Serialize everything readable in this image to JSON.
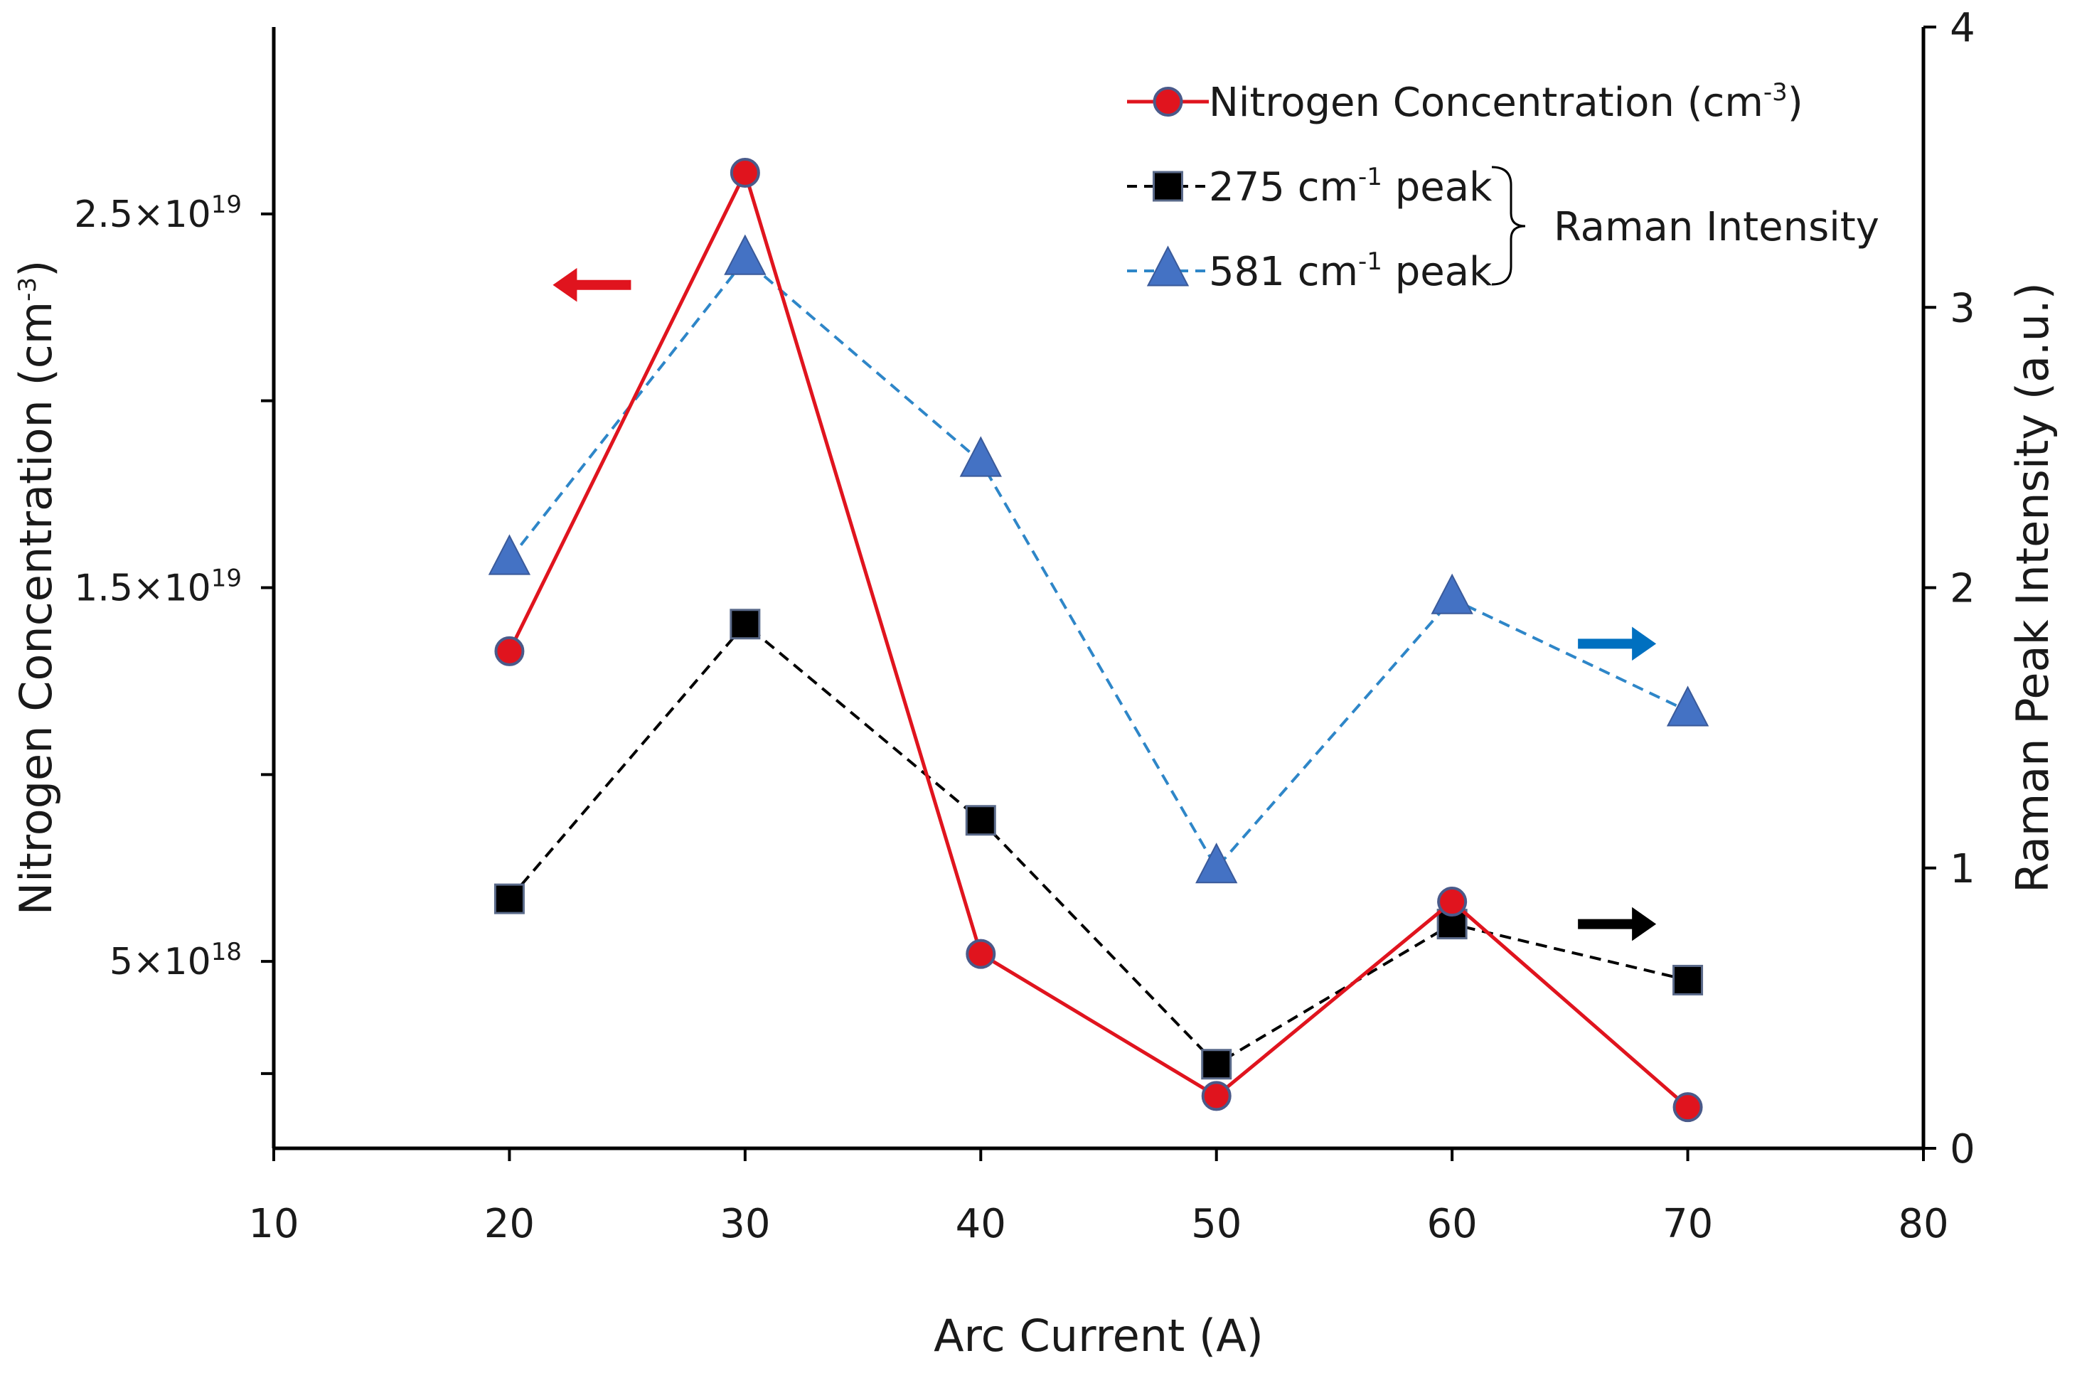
{
  "chart_data": {
    "type": "line",
    "title": "",
    "xlabel": "Arc Current (A)",
    "xlim": [
      10,
      80
    ],
    "xticks": [
      10,
      20,
      30,
      40,
      50,
      60,
      70,
      80
    ],
    "y_left": {
      "label": "Nitrogen Concentration (cm",
      "label_exp": "-3",
      "label_close": ")",
      "lim": [
        0,
        3e+19
      ],
      "ticks": [
        {
          "value": 5e+18,
          "base": "5×10",
          "exp": "18"
        },
        {
          "value": 1.5e+19,
          "base": "1.5×10",
          "exp": "19"
        },
        {
          "value": 2.5e+19,
          "base": "2.5×10",
          "exp": "19"
        }
      ]
    },
    "y_right": {
      "label": "Raman Peak Intensity (a.u.)",
      "lim": [
        0,
        4
      ],
      "ticks": [
        0,
        1,
        2,
        3,
        4
      ]
    },
    "x": [
      20,
      30,
      40,
      50,
      60,
      70
    ],
    "series": [
      {
        "name": "Nitrogen Concentration (cm",
        "name_exp": "-3",
        "name_close": ")",
        "axis": "left",
        "values": [
          1.33e+19,
          2.61e+19,
          5.2e+18,
          1.4e+18,
          6.6e+18,
          1.1e+18
        ],
        "color": "#e0141e",
        "marker": "circle",
        "dash": "solid"
      },
      {
        "name": "275 cm",
        "name_exp": "-1",
        "name_close": " peak",
        "axis": "right",
        "values": [
          0.89,
          1.87,
          1.17,
          0.3,
          0.8,
          0.6
        ],
        "color": "#000000",
        "marker": "square",
        "dash": "dashed"
      },
      {
        "name": "581 cm",
        "name_exp": "-1",
        "name_close": " peak",
        "axis": "right",
        "values": [
          2.1,
          3.17,
          2.45,
          1.0,
          1.96,
          1.56
        ],
        "color": "#4472c4",
        "line_color": "#2e86c8",
        "marker": "triangle",
        "dash": "dashed"
      }
    ],
    "legend": {
      "position": "top-right",
      "group_label": "Raman Intensity"
    },
    "annotations": [
      {
        "name": "left-axis-arrow",
        "direction": "left",
        "color": "#e0141e",
        "x": 23.5,
        "y_left": 2.31e+19
      },
      {
        "name": "right-axis-arrow-blue",
        "direction": "right",
        "color": "#0070c0",
        "x": 67,
        "y_right": 1.8
      },
      {
        "name": "right-axis-arrow-black",
        "direction": "right",
        "color": "#000000",
        "x": 67,
        "y_right": 0.8
      }
    ]
  }
}
